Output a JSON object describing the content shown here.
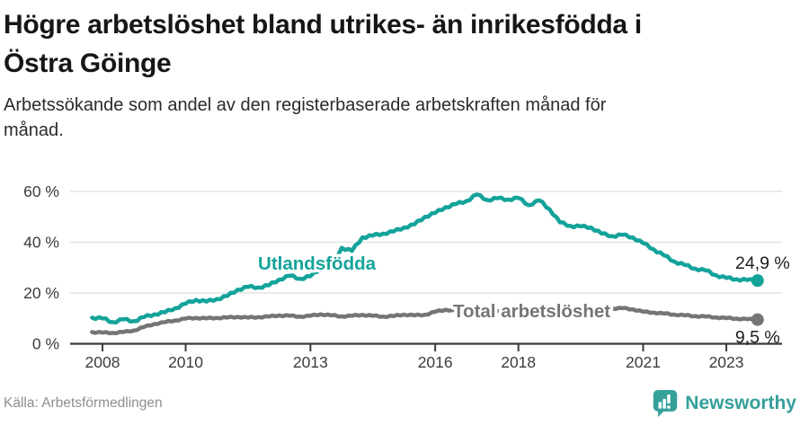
{
  "header": {
    "title_lines": [
      "Högre arbetslöshet bland utrikes- än inrikesfödda i",
      "Östra Göinge"
    ],
    "subtitle_lines": [
      "Arbetssökande som andel av den registerbaserade arbetskraften månad för",
      "månad."
    ]
  },
  "footer": {
    "source": "Källa: Arbetsförmedlingen",
    "brand": "Newsworthy"
  },
  "colors": {
    "foreign_born_line": "#14a39a",
    "total_line": "#757575",
    "grid": "#e3e3e3",
    "axis": "#3b3b3b",
    "brand_teal": "#35a09a",
    "end_label_text": "#1d1d1d"
  },
  "chart_data": {
    "type": "line",
    "title": "Högre arbetslöshet bland utrikes- än inrikesfödda i Östra Göinge",
    "subtitle": "Arbetssökande som andel av den registerbaserade arbetskraften månad för månad.",
    "unit": "%",
    "grid": "horizontal",
    "legend_position": "inline-labels",
    "xlim": [
      2007.2,
      2024.3
    ],
    "ylim": [
      0,
      65
    ],
    "x_axis": {
      "ticks": [
        {
          "value": 2008,
          "label": "2008"
        },
        {
          "value": 2010,
          "label": "2010"
        },
        {
          "value": 2013,
          "label": "2013"
        },
        {
          "value": 2016,
          "label": "2016"
        },
        {
          "value": 2018,
          "label": "2018"
        },
        {
          "value": 2021,
          "label": "2021"
        },
        {
          "value": 2023,
          "label": "2023"
        }
      ]
    },
    "y_axis": {
      "ticks": [
        {
          "value": 0,
          "label": "0 %"
        },
        {
          "value": 20,
          "label": "20 %"
        },
        {
          "value": 40,
          "label": "40 %"
        },
        {
          "value": 60,
          "label": "60 %"
        }
      ]
    },
    "x": [
      2007.75,
      2008,
      2008.25,
      2008.5,
      2008.75,
      2009,
      2009.25,
      2009.5,
      2009.75,
      2010,
      2010.25,
      2010.5,
      2010.75,
      2011,
      2011.25,
      2011.5,
      2011.75,
      2012,
      2012.25,
      2012.5,
      2012.75,
      2013,
      2013.25,
      2013.5,
      2013.75,
      2014,
      2014.25,
      2014.5,
      2014.75,
      2015,
      2015.25,
      2015.5,
      2015.75,
      2016,
      2016.25,
      2016.5,
      2016.75,
      2017,
      2017.25,
      2017.5,
      2017.75,
      2018,
      2018.25,
      2018.5,
      2018.75,
      2019,
      2019.25,
      2019.5,
      2019.75,
      2020,
      2020.25,
      2020.5,
      2020.75,
      2021,
      2021.25,
      2021.5,
      2021.75,
      2022,
      2022.25,
      2022.5,
      2022.75,
      2023,
      2023.25,
      2023.5,
      2023.75
    ],
    "series": [
      {
        "name": "Utlandsfödda",
        "color": "#14a39a",
        "end_value": 24.9,
        "end_label": "24,9 %",
        "end_label_position": "above-right",
        "label_x": 2011.74,
        "label_y": 29.2,
        "wiggle": 0.5,
        "values": [
          10.3,
          10.0,
          8.5,
          9.6,
          8.9,
          10.5,
          11.6,
          12.4,
          14.0,
          15.8,
          17.3,
          16.6,
          17.6,
          18.8,
          21.3,
          22.4,
          22.2,
          23.0,
          25.3,
          26.8,
          25.6,
          26.6,
          29.7,
          30.2,
          37.8,
          36.6,
          41.9,
          42.6,
          43.4,
          44.2,
          45.8,
          47.0,
          50.0,
          51.5,
          53.8,
          55.0,
          56.2,
          58.8,
          56.6,
          57.3,
          56.8,
          57.4,
          54.6,
          56.5,
          53.0,
          47.8,
          46.4,
          46.2,
          45.8,
          43.4,
          42.4,
          42.9,
          41.9,
          39.6,
          37.2,
          34.8,
          32.4,
          31.0,
          29.6,
          28.9,
          27.0,
          25.9,
          25.4,
          25.1,
          24.9
        ]
      },
      {
        "name": "Total arbetslöshet",
        "color": "#757575",
        "end_value": 9.5,
        "end_label": "9,5 %",
        "end_label_position": "below-right",
        "label_x": 2016.43,
        "label_y": 10.4,
        "wiggle": 0.28,
        "values": [
          4.6,
          4.4,
          4.3,
          4.6,
          5.2,
          6.6,
          7.8,
          8.5,
          9.2,
          9.9,
          10.2,
          10.0,
          10.2,
          10.3,
          10.6,
          10.3,
          10.5,
          10.7,
          11.2,
          11.0,
          10.7,
          11.0,
          11.6,
          11.2,
          10.8,
          11.0,
          11.4,
          11.0,
          10.7,
          10.9,
          11.5,
          11.2,
          11.4,
          12.6,
          13.4,
          13.0,
          12.6,
          12.8,
          13.2,
          12.8,
          12.4,
          12.2,
          12.6,
          12.1,
          11.8,
          11.9,
          12.3,
          12.0,
          12.2,
          13.2,
          13.9,
          14.0,
          13.6,
          12.6,
          12.3,
          11.9,
          11.5,
          11.2,
          10.9,
          10.7,
          10.4,
          10.1,
          9.9,
          9.7,
          9.5
        ]
      }
    ]
  }
}
